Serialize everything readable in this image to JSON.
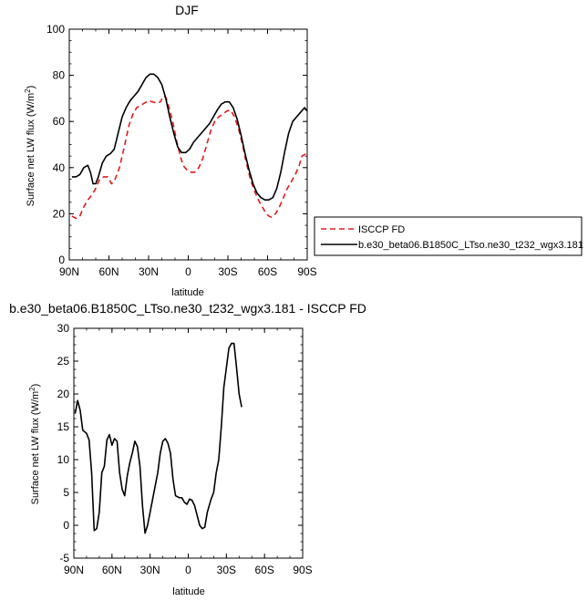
{
  "chart_data": [
    {
      "type": "line",
      "title": "DJF",
      "xlabel": "latitude",
      "ylabel": "Surface net LW flux (W/m²)",
      "xlim": [
        90,
        -90
      ],
      "ylim": [
        0,
        100
      ],
      "xticks": [
        90,
        60,
        30,
        0,
        -30,
        -60,
        -90
      ],
      "xtick_labels": [
        "90N",
        "60N",
        "30N",
        "0",
        "30S",
        "60S",
        "90S"
      ],
      "yticks": [
        0,
        20,
        40,
        60,
        80,
        100
      ],
      "ytick_labels": [
        "0",
        "20",
        "40",
        "60",
        "80",
        "100"
      ],
      "legend": "outside-right",
      "series": [
        {
          "name": "ISCCP FD",
          "color": "#e41a1c",
          "dash": true,
          "points": [
            [
              88,
              19
            ],
            [
              85,
              18
            ],
            [
              82,
              19
            ],
            [
              79,
              23
            ],
            [
              76,
              26
            ],
            [
              73,
              28
            ],
            [
              70,
              31
            ],
            [
              67,
              35
            ],
            [
              64,
              36
            ],
            [
              61,
              36
            ],
            [
              58,
              33
            ],
            [
              56,
              34
            ],
            [
              52,
              40
            ],
            [
              48,
              50
            ],
            [
              45,
              58
            ],
            [
              42,
              63
            ],
            [
              39,
              66
            ],
            [
              36,
              67
            ],
            [
              33,
              68
            ],
            [
              30,
              69
            ],
            [
              27,
              68.5
            ],
            [
              24,
              68
            ],
            [
              21,
              68.5
            ],
            [
              19,
              71
            ],
            [
              17,
              70.5
            ],
            [
              14,
              65
            ],
            [
              11,
              58
            ],
            [
              9,
              52
            ],
            [
              6,
              45
            ],
            [
              4,
              41
            ],
            [
              1,
              39
            ],
            [
              -2,
              38
            ],
            [
              -5,
              38
            ],
            [
              -8,
              40
            ],
            [
              -11,
              44
            ],
            [
              -14,
              50
            ],
            [
              -17,
              56
            ],
            [
              -20,
              60
            ],
            [
              -23,
              62
            ],
            [
              -26,
              63
            ],
            [
              -29,
              64.5
            ],
            [
              -32,
              65
            ],
            [
              -35,
              62
            ],
            [
              -38,
              57
            ],
            [
              -41,
              50
            ],
            [
              -44,
              42
            ],
            [
              -47,
              35
            ],
            [
              -50,
              30
            ],
            [
              -53,
              26
            ],
            [
              -56,
              23
            ],
            [
              -59,
              20
            ],
            [
              -61,
              19
            ],
            [
              -63,
              18.5
            ],
            [
              -66,
              20
            ],
            [
              -69,
              23
            ],
            [
              -72,
              27
            ],
            [
              -75,
              31
            ],
            [
              -78,
              34
            ],
            [
              -81,
              37
            ],
            [
              -84,
              41
            ],
            [
              -86,
              45
            ],
            [
              -89,
              46
            ]
          ]
        },
        {
          "name": "b.e30_beta06.B1850C_LTso.ne30_t232_wgx3.181",
          "color": "#000000",
          "dash": false,
          "points": [
            [
              88,
              36
            ],
            [
              85,
              36
            ],
            [
              82,
              37
            ],
            [
              79,
              40
            ],
            [
              76,
              41
            ],
            [
              74,
              38
            ],
            [
              72,
              33
            ],
            [
              70,
              33
            ],
            [
              68,
              36
            ],
            [
              65,
              42
            ],
            [
              62,
              45
            ],
            [
              59,
              46
            ],
            [
              56,
              48
            ],
            [
              53,
              55
            ],
            [
              50,
              62
            ],
            [
              47,
              66
            ],
            [
              44,
              69
            ],
            [
              41,
              71
            ],
            [
              38,
              73
            ],
            [
              35,
              76
            ],
            [
              32,
              79
            ],
            [
              29,
              80.5
            ],
            [
              26,
              80.5
            ],
            [
              23,
              79
            ],
            [
              20,
              76
            ],
            [
              17,
              70
            ],
            [
              14,
              62
            ],
            [
              11,
              55
            ],
            [
              8,
              49
            ],
            [
              5,
              46.5
            ],
            [
              2,
              46.5
            ],
            [
              -1,
              48
            ],
            [
              -4,
              51
            ],
            [
              -7,
              53
            ],
            [
              -10,
              55
            ],
            [
              -13,
              57
            ],
            [
              -16,
              59
            ],
            [
              -19,
              62
            ],
            [
              -22,
              65
            ],
            [
              -25,
              67.5
            ],
            [
              -28,
              68.5
            ],
            [
              -31,
              68.5
            ],
            [
              -34,
              66
            ],
            [
              -37,
              61
            ],
            [
              -40,
              54
            ],
            [
              -43,
              46
            ],
            [
              -46,
              39
            ],
            [
              -49,
              33
            ],
            [
              -52,
              29
            ],
            [
              -55,
              27
            ],
            [
              -58,
              26
            ],
            [
              -61,
              26
            ],
            [
              -64,
              27
            ],
            [
              -67,
              31
            ],
            [
              -70,
              38
            ],
            [
              -73,
              47
            ],
            [
              -76,
              55
            ],
            [
              -79,
              60
            ],
            [
              -82,
              62
            ],
            [
              -85,
              64
            ],
            [
              -88,
              66
            ],
            [
              -90,
              64.5
            ]
          ]
        }
      ]
    },
    {
      "type": "line",
      "title": "b.e30_beta06.B1850C_LTso.ne30_t232_wgx3.181 - ISCCP FD",
      "xlabel": "latitude",
      "ylabel": "Surface net LW flux (W/m²)",
      "xlim": [
        90,
        -90
      ],
      "ylim": [
        -5,
        30
      ],
      "xticks": [
        90,
        60,
        30,
        0,
        -30,
        -60,
        -90
      ],
      "xtick_labels": [
        "90N",
        "60N",
        "30N",
        "0",
        "30S",
        "60S",
        "90S"
      ],
      "yticks": [
        -5,
        0,
        5,
        10,
        15,
        20,
        25,
        30
      ],
      "ytick_labels": [
        "-5",
        "0",
        "5",
        "10",
        "15",
        "20",
        "25",
        "30"
      ],
      "series": [
        {
          "color": "#000000",
          "dash": false,
          "points": [
            [
              89,
              17
            ],
            [
              87,
              19
            ],
            [
              85,
              17.5
            ],
            [
              83,
              14.5
            ],
            [
              80,
              14
            ],
            [
              78,
              13
            ],
            [
              76,
              8
            ],
            [
              74,
              -0.8
            ],
            [
              72,
              -0.5
            ],
            [
              70,
              2
            ],
            [
              68,
              8
            ],
            [
              66,
              9
            ],
            [
              64,
              13
            ],
            [
              62,
              13.8
            ],
            [
              60,
              12.2
            ],
            [
              58,
              13.2
            ],
            [
              56,
              12.8
            ],
            [
              54,
              8
            ],
            [
              52,
              5.5
            ],
            [
              50,
              4.5
            ],
            [
              48,
              7.5
            ],
            [
              46,
              9.5
            ],
            [
              44,
              11
            ],
            [
              42,
              12.8
            ],
            [
              40,
              12
            ],
            [
              38,
              9
            ],
            [
              36,
              3
            ],
            [
              34,
              -1.2
            ],
            [
              32,
              0
            ],
            [
              30,
              2
            ],
            [
              28,
              4
            ],
            [
              26,
              6
            ],
            [
              24,
              8
            ],
            [
              22,
              11
            ],
            [
              20,
              12.8
            ],
            [
              18,
              13.2
            ],
            [
              16,
              12.5
            ],
            [
              14,
              11
            ],
            [
              12,
              7
            ],
            [
              10,
              4.5
            ],
            [
              7,
              4.2
            ],
            [
              5,
              4.2
            ],
            [
              3,
              3.5
            ],
            [
              1,
              3.2
            ],
            [
              -1,
              4
            ],
            [
              -3,
              3.8
            ],
            [
              -5,
              3
            ],
            [
              -7,
              1.5
            ],
            [
              -9,
              0
            ],
            [
              -11,
              -0.5
            ],
            [
              -13,
              -0.3
            ],
            [
              -15,
              2
            ],
            [
              -18,
              4
            ],
            [
              -20,
              5
            ],
            [
              -22,
              8
            ],
            [
              -24,
              10
            ],
            [
              -26,
              15
            ],
            [
              -28,
              21
            ],
            [
              -30,
              24
            ],
            [
              -32,
              27
            ],
            [
              -34,
              27.7
            ],
            [
              -36,
              27.7
            ],
            [
              -38,
              24
            ],
            [
              -40,
              20
            ],
            [
              -42,
              18
            ]
          ]
        }
      ]
    }
  ]
}
